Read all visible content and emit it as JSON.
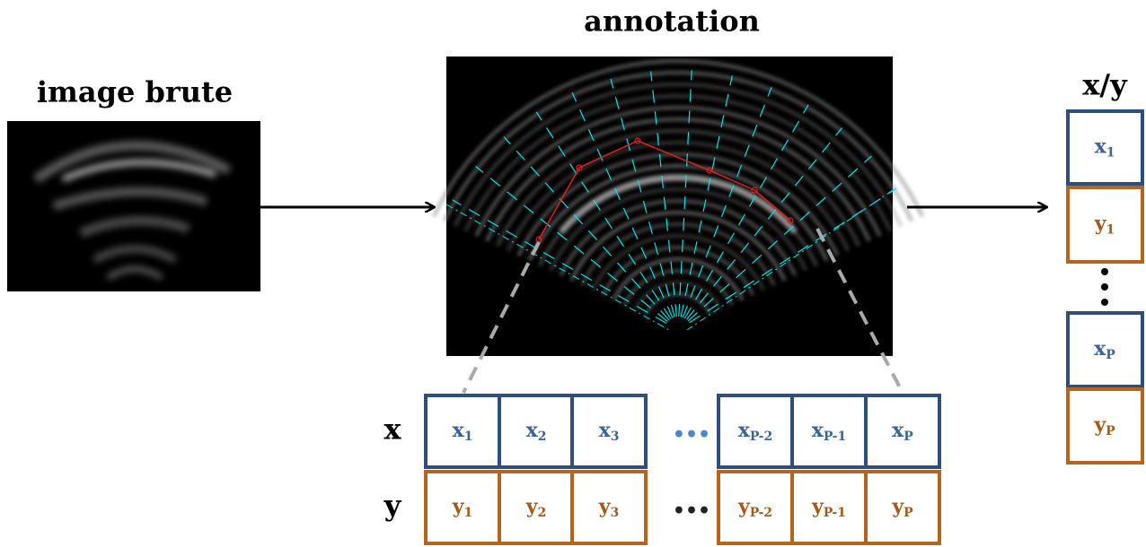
{
  "left": {
    "title": "image brute"
  },
  "center": {
    "title": "annotation"
  },
  "right": {
    "title": "x/y",
    "cells": [
      {
        "base": "x",
        "sub": "1"
      },
      {
        "base": "y",
        "sub": "1"
      },
      {
        "base": "x",
        "sub": "P"
      },
      {
        "base": "y",
        "sub": "P"
      }
    ]
  },
  "rows": [
    {
      "label": "x",
      "ellipsis": "•••",
      "cells": [
        {
          "base": "x",
          "sub": "1"
        },
        {
          "base": "x",
          "sub": "2"
        },
        {
          "base": "x",
          "sub": "3"
        },
        {
          "base": "x",
          "sub": "P-2"
        },
        {
          "base": "x",
          "sub": "P-1"
        },
        {
          "base": "x",
          "sub": "P"
        }
      ]
    },
    {
      "label": "y",
      "ellipsis": "•••",
      "cells": [
        {
          "base": "y",
          "sub": "1"
        },
        {
          "base": "y",
          "sub": "2"
        },
        {
          "base": "y",
          "sub": "3"
        },
        {
          "base": "y",
          "sub": "P-2"
        },
        {
          "base": "y",
          "sub": "P-1"
        },
        {
          "base": "y",
          "sub": "P"
        }
      ]
    }
  ]
}
